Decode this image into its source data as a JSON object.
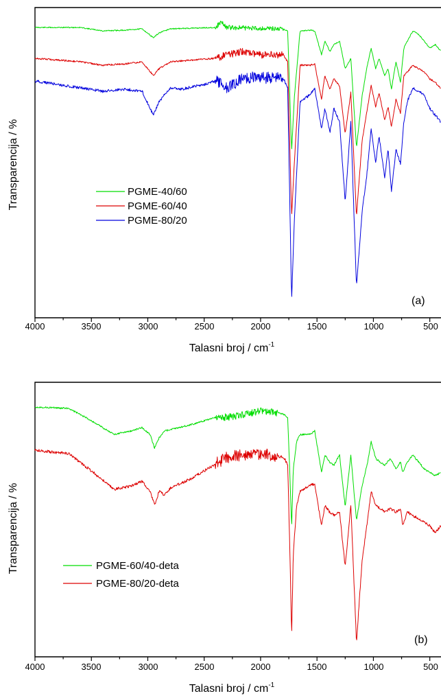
{
  "chart_data": [
    {
      "type": "line",
      "panel_label": "(a)",
      "xlabel": "Talasni broj / cm",
      "xlabel_sup": "-1",
      "ylabel": "Transparencija / %",
      "xlim": [
        4000,
        400
      ],
      "x_reversed": true,
      "xticks": [
        4000,
        3500,
        3000,
        2500,
        2000,
        1500,
        1000,
        500
      ],
      "yticks_labeled": false,
      "legend_position": "center-left",
      "series": [
        {
          "name": "PGME-40/60",
          "color": "#00dd00",
          "offset": 40,
          "noise": 1.0,
          "noisy_region": [
            2400,
            1800
          ],
          "points": [
            [
              4000,
              0
            ],
            [
              3600,
              0
            ],
            [
              3400,
              5
            ],
            [
              3200,
              4
            ],
            [
              3050,
              2
            ],
            [
              2950,
              15
            ],
            [
              2900,
              8
            ],
            [
              2800,
              2
            ],
            [
              2400,
              0
            ],
            [
              2350,
              -8
            ],
            [
              2300,
              0
            ],
            [
              1800,
              2
            ],
            [
              1760,
              5
            ],
            [
              1725,
              180
            ],
            [
              1700,
              100
            ],
            [
              1650,
              5
            ],
            [
              1560,
              4
            ],
            [
              1520,
              5
            ],
            [
              1460,
              40
            ],
            [
              1430,
              20
            ],
            [
              1385,
              35
            ],
            [
              1350,
              25
            ],
            [
              1300,
              20
            ],
            [
              1250,
              60
            ],
            [
              1200,
              45
            ],
            [
              1150,
              175
            ],
            [
              1100,
              100
            ],
            [
              1060,
              60
            ],
            [
              1020,
              30
            ],
            [
              980,
              60
            ],
            [
              950,
              45
            ],
            [
              900,
              70
            ],
            [
              870,
              60
            ],
            [
              840,
              90
            ],
            [
              800,
              50
            ],
            [
              760,
              80
            ],
            [
              730,
              30
            ],
            [
              700,
              20
            ],
            [
              650,
              5
            ],
            [
              600,
              10
            ],
            [
              550,
              20
            ],
            [
              500,
              30
            ],
            [
              450,
              25
            ],
            [
              400,
              35
            ]
          ]
        },
        {
          "name": "PGME-60/40",
          "color": "#dd0000",
          "offset": 85,
          "noise": 1.5,
          "noisy_region": [
            2400,
            1800
          ],
          "points": [
            [
              4000,
              0
            ],
            [
              3600,
              5
            ],
            [
              3400,
              10
            ],
            [
              3200,
              8
            ],
            [
              3050,
              5
            ],
            [
              2950,
              25
            ],
            [
              2900,
              15
            ],
            [
              2800,
              5
            ],
            [
              2400,
              0
            ],
            [
              2300,
              -5
            ],
            [
              2150,
              -10
            ],
            [
              2000,
              -5
            ],
            [
              1800,
              -5
            ],
            [
              1760,
              5
            ],
            [
              1725,
              230
            ],
            [
              1700,
              150
            ],
            [
              1650,
              10
            ],
            [
              1560,
              10
            ],
            [
              1520,
              8
            ],
            [
              1460,
              60
            ],
            [
              1430,
              25
            ],
            [
              1385,
              45
            ],
            [
              1350,
              30
            ],
            [
              1300,
              40
            ],
            [
              1250,
              110
            ],
            [
              1200,
              50
            ],
            [
              1150,
              230
            ],
            [
              1100,
              120
            ],
            [
              1060,
              80
            ],
            [
              1020,
              40
            ],
            [
              980,
              70
            ],
            [
              950,
              50
            ],
            [
              900,
              90
            ],
            [
              870,
              70
            ],
            [
              840,
              100
            ],
            [
              800,
              60
            ],
            [
              760,
              80
            ],
            [
              730,
              25
            ],
            [
              700,
              20
            ],
            [
              650,
              10
            ],
            [
              600,
              15
            ],
            [
              550,
              20
            ],
            [
              500,
              30
            ],
            [
              450,
              35
            ],
            [
              400,
              45
            ]
          ]
        },
        {
          "name": "PGME-80/20",
          "color": "#0000dd",
          "offset": 118,
          "noise": 2.5,
          "noisy_region": [
            2400,
            1800
          ],
          "points": [
            [
              4000,
              0
            ],
            [
              3600,
              10
            ],
            [
              3400,
              15
            ],
            [
              3200,
              12
            ],
            [
              3050,
              15
            ],
            [
              2950,
              50
            ],
            [
              2900,
              30
            ],
            [
              2800,
              10
            ],
            [
              2700,
              12
            ],
            [
              2500,
              5
            ],
            [
              2400,
              0
            ],
            [
              2300,
              10
            ],
            [
              2150,
              -5
            ],
            [
              2000,
              -5
            ],
            [
              1800,
              -5
            ],
            [
              1760,
              10
            ],
            [
              1725,
              320
            ],
            [
              1700,
              200
            ],
            [
              1650,
              30
            ],
            [
              1560,
              20
            ],
            [
              1520,
              10
            ],
            [
              1460,
              70
            ],
            [
              1430,
              40
            ],
            [
              1385,
              75
            ],
            [
              1350,
              40
            ],
            [
              1300,
              60
            ],
            [
              1250,
              175
            ],
            [
              1200,
              60
            ],
            [
              1150,
              300
            ],
            [
              1100,
              190
            ],
            [
              1060,
              140
            ],
            [
              1020,
              70
            ],
            [
              980,
              120
            ],
            [
              950,
              80
            ],
            [
              900,
              140
            ],
            [
              870,
              100
            ],
            [
              840,
              160
            ],
            [
              800,
              100
            ],
            [
              760,
              120
            ],
            [
              730,
              60
            ],
            [
              700,
              30
            ],
            [
              650,
              10
            ],
            [
              600,
              15
            ],
            [
              550,
              20
            ],
            [
              500,
              40
            ],
            [
              450,
              50
            ],
            [
              400,
              60
            ]
          ]
        }
      ]
    },
    {
      "type": "line",
      "panel_label": "(b)",
      "xlabel": "Talasni broj / cm",
      "xlabel_sup": "-1",
      "ylabel": "Transparencija / %",
      "xlim": [
        4000,
        400
      ],
      "x_reversed": true,
      "xticks": [
        4000,
        3500,
        3000,
        2500,
        2000,
        1500,
        1000,
        500
      ],
      "yticks_labeled": false,
      "legend_position": "bottom-left",
      "series": [
        {
          "name": "PGME-60/40-deta",
          "color": "#00dd00",
          "offset": 593,
          "noise": 1.5,
          "noisy_region": [
            2400,
            1850
          ],
          "points": [
            [
              4000,
              0
            ],
            [
              3700,
              2
            ],
            [
              3500,
              20
            ],
            [
              3300,
              40
            ],
            [
              3150,
              35
            ],
            [
              3050,
              30
            ],
            [
              2980,
              40
            ],
            [
              2940,
              60
            ],
            [
              2900,
              45
            ],
            [
              2850,
              35
            ],
            [
              2600,
              25
            ],
            [
              2400,
              15
            ],
            [
              2300,
              15
            ],
            [
              2100,
              10
            ],
            [
              2000,
              5
            ],
            [
              1800,
              10
            ],
            [
              1760,
              15
            ],
            [
              1740,
              100
            ],
            [
              1725,
              175
            ],
            [
              1710,
              90
            ],
            [
              1680,
              50
            ],
            [
              1650,
              40
            ],
            [
              1560,
              40
            ],
            [
              1520,
              35
            ],
            [
              1460,
              95
            ],
            [
              1430,
              70
            ],
            [
              1390,
              80
            ],
            [
              1350,
              85
            ],
            [
              1300,
              70
            ],
            [
              1250,
              145
            ],
            [
              1200,
              70
            ],
            [
              1150,
              165
            ],
            [
              1100,
              115
            ],
            [
              1050,
              80
            ],
            [
              1020,
              50
            ],
            [
              980,
              75
            ],
            [
              900,
              85
            ],
            [
              850,
              75
            ],
            [
              800,
              90
            ],
            [
              760,
              80
            ],
            [
              740,
              95
            ],
            [
              700,
              80
            ],
            [
              650,
              70
            ],
            [
              600,
              80
            ],
            [
              550,
              90
            ],
            [
              500,
              95
            ],
            [
              450,
              100
            ],
            [
              400,
              95
            ]
          ]
        },
        {
          "name": "PGME-80/20-deta",
          "color": "#dd0000",
          "offset": 656,
          "noise": 2.5,
          "noisy_region": [
            2400,
            1850
          ],
          "points": [
            [
              4000,
              0
            ],
            [
              3700,
              5
            ],
            [
              3500,
              30
            ],
            [
              3300,
              57
            ],
            [
              3150,
              52
            ],
            [
              3050,
              45
            ],
            [
              2980,
              60
            ],
            [
              2940,
              80
            ],
            [
              2900,
              60
            ],
            [
              2850,
              65
            ],
            [
              2800,
              55
            ],
            [
              2600,
              40
            ],
            [
              2400,
              20
            ],
            [
              2300,
              10
            ],
            [
              2100,
              5
            ],
            [
              2000,
              5
            ],
            [
              1800,
              10
            ],
            [
              1760,
              20
            ],
            [
              1740,
              150
            ],
            [
              1725,
              270
            ],
            [
              1710,
              150
            ],
            [
              1680,
              80
            ],
            [
              1650,
              60
            ],
            [
              1560,
              50
            ],
            [
              1520,
              50
            ],
            [
              1460,
              110
            ],
            [
              1430,
              80
            ],
            [
              1390,
              90
            ],
            [
              1350,
              95
            ],
            [
              1300,
              90
            ],
            [
              1250,
              170
            ],
            [
              1200,
              80
            ],
            [
              1150,
              280
            ],
            [
              1100,
              160
            ],
            [
              1050,
              100
            ],
            [
              1020,
              60
            ],
            [
              980,
              80
            ],
            [
              900,
              90
            ],
            [
              850,
              85
            ],
            [
              800,
              90
            ],
            [
              760,
              85
            ],
            [
              740,
              110
            ],
            [
              700,
              90
            ],
            [
              650,
              95
            ],
            [
              600,
              100
            ],
            [
              550,
              105
            ],
            [
              500,
              110
            ],
            [
              450,
              120
            ],
            [
              400,
              110
            ]
          ]
        }
      ]
    }
  ]
}
